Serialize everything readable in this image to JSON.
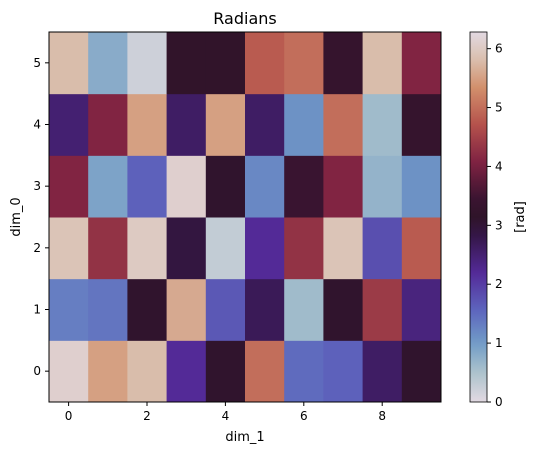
{
  "chart_data": {
    "type": "heatmap",
    "title": "Radians",
    "xlabel": "dim_1",
    "ylabel": "dim_0",
    "colorbar_label": "[rad]",
    "colormap": "twilight",
    "vmin": 0,
    "vmax": 6.283,
    "x_ticks": [
      "0",
      "2",
      "4",
      "6",
      "8"
    ],
    "y_ticks": [
      "0",
      "1",
      "2",
      "3",
      "4",
      "5"
    ],
    "colorbar_ticks": [
      "0",
      "1",
      "2",
      "3",
      "4",
      "5",
      "6"
    ],
    "x_range": [
      0,
      9
    ],
    "y_range": [
      0,
      5
    ],
    "rows": [
      {
        "dim_0": 0,
        "values": [
          6.1,
          5.5,
          5.8,
          2.2,
          3.1,
          5.0,
          1.5,
          1.6,
          2.6,
          3.1
        ]
      },
      {
        "dim_0": 1,
        "values": [
          1.3,
          1.4,
          3.1,
          5.6,
          1.7,
          2.7,
          0.6,
          3.1,
          4.4,
          2.4
        ]
      },
      {
        "dim_0": 2,
        "values": [
          5.9,
          4.3,
          6.0,
          2.9,
          0.3,
          2.2,
          4.3,
          5.9,
          1.8,
          4.8
        ]
      },
      {
        "dim_0": 3,
        "values": [
          4.1,
          0.9,
          1.6,
          6.1,
          3.1,
          1.2,
          3.4,
          4.1,
          0.7,
          1.1
        ]
      },
      {
        "dim_0": 4,
        "values": [
          2.5,
          4.1,
          5.5,
          2.6,
          5.5,
          2.6,
          1.1,
          5.0,
          0.6,
          3.3
        ]
      },
      {
        "dim_0": 5,
        "values": [
          5.8,
          0.8,
          0.2,
          3.2,
          3.2,
          4.8,
          5.0,
          3.3,
          5.8,
          4.1
        ]
      }
    ]
  }
}
